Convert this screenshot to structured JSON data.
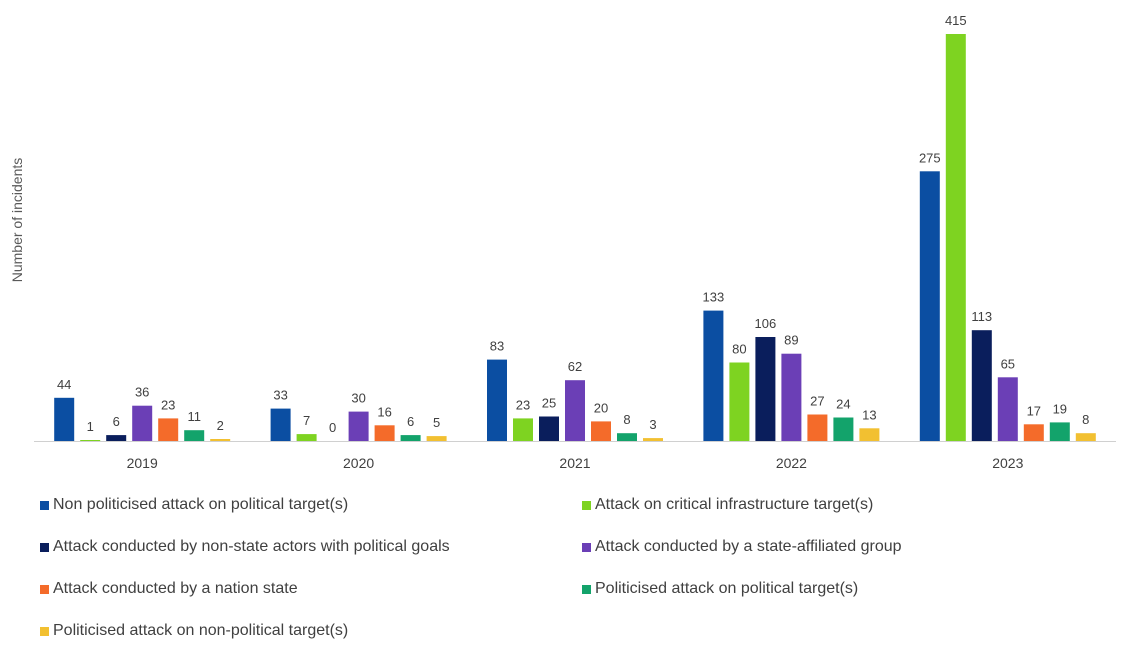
{
  "chart_data": {
    "type": "bar",
    "title": "",
    "xlabel": "",
    "ylabel": "Number of incidents",
    "categories": [
      "2019",
      "2020",
      "2021",
      "2022",
      "2023"
    ],
    "ylim": [
      0,
      415
    ],
    "grid": false,
    "legend_position": "bottom",
    "series": [
      {
        "name": "Non politicised attack on political target(s)",
        "color": "#0B4EA2",
        "values": [
          44,
          33,
          83,
          133,
          275
        ]
      },
      {
        "name": "Attack on critical infrastructure target(s)",
        "color": "#7ED321",
        "values": [
          1,
          7,
          23,
          80,
          415
        ]
      },
      {
        "name": "Attack conducted by non-state actors with political goals",
        "color": "#0A1E5C",
        "values": [
          6,
          0,
          25,
          106,
          113
        ]
      },
      {
        "name": "Attack conducted by a state-affiliated group",
        "color": "#6B3FB6",
        "values": [
          36,
          30,
          62,
          89,
          65
        ]
      },
      {
        "name": "Attack conducted by a nation state",
        "color": "#F46B2A",
        "values": [
          23,
          16,
          20,
          27,
          17
        ]
      },
      {
        "name": "Politicised attack on political target(s)",
        "color": "#13A36B",
        "values": [
          11,
          6,
          8,
          24,
          19
        ]
      },
      {
        "name": "Politicised attack on non-political target(s)",
        "color": "#F2C031",
        "values": [
          2,
          5,
          3,
          13,
          8
        ]
      }
    ]
  }
}
